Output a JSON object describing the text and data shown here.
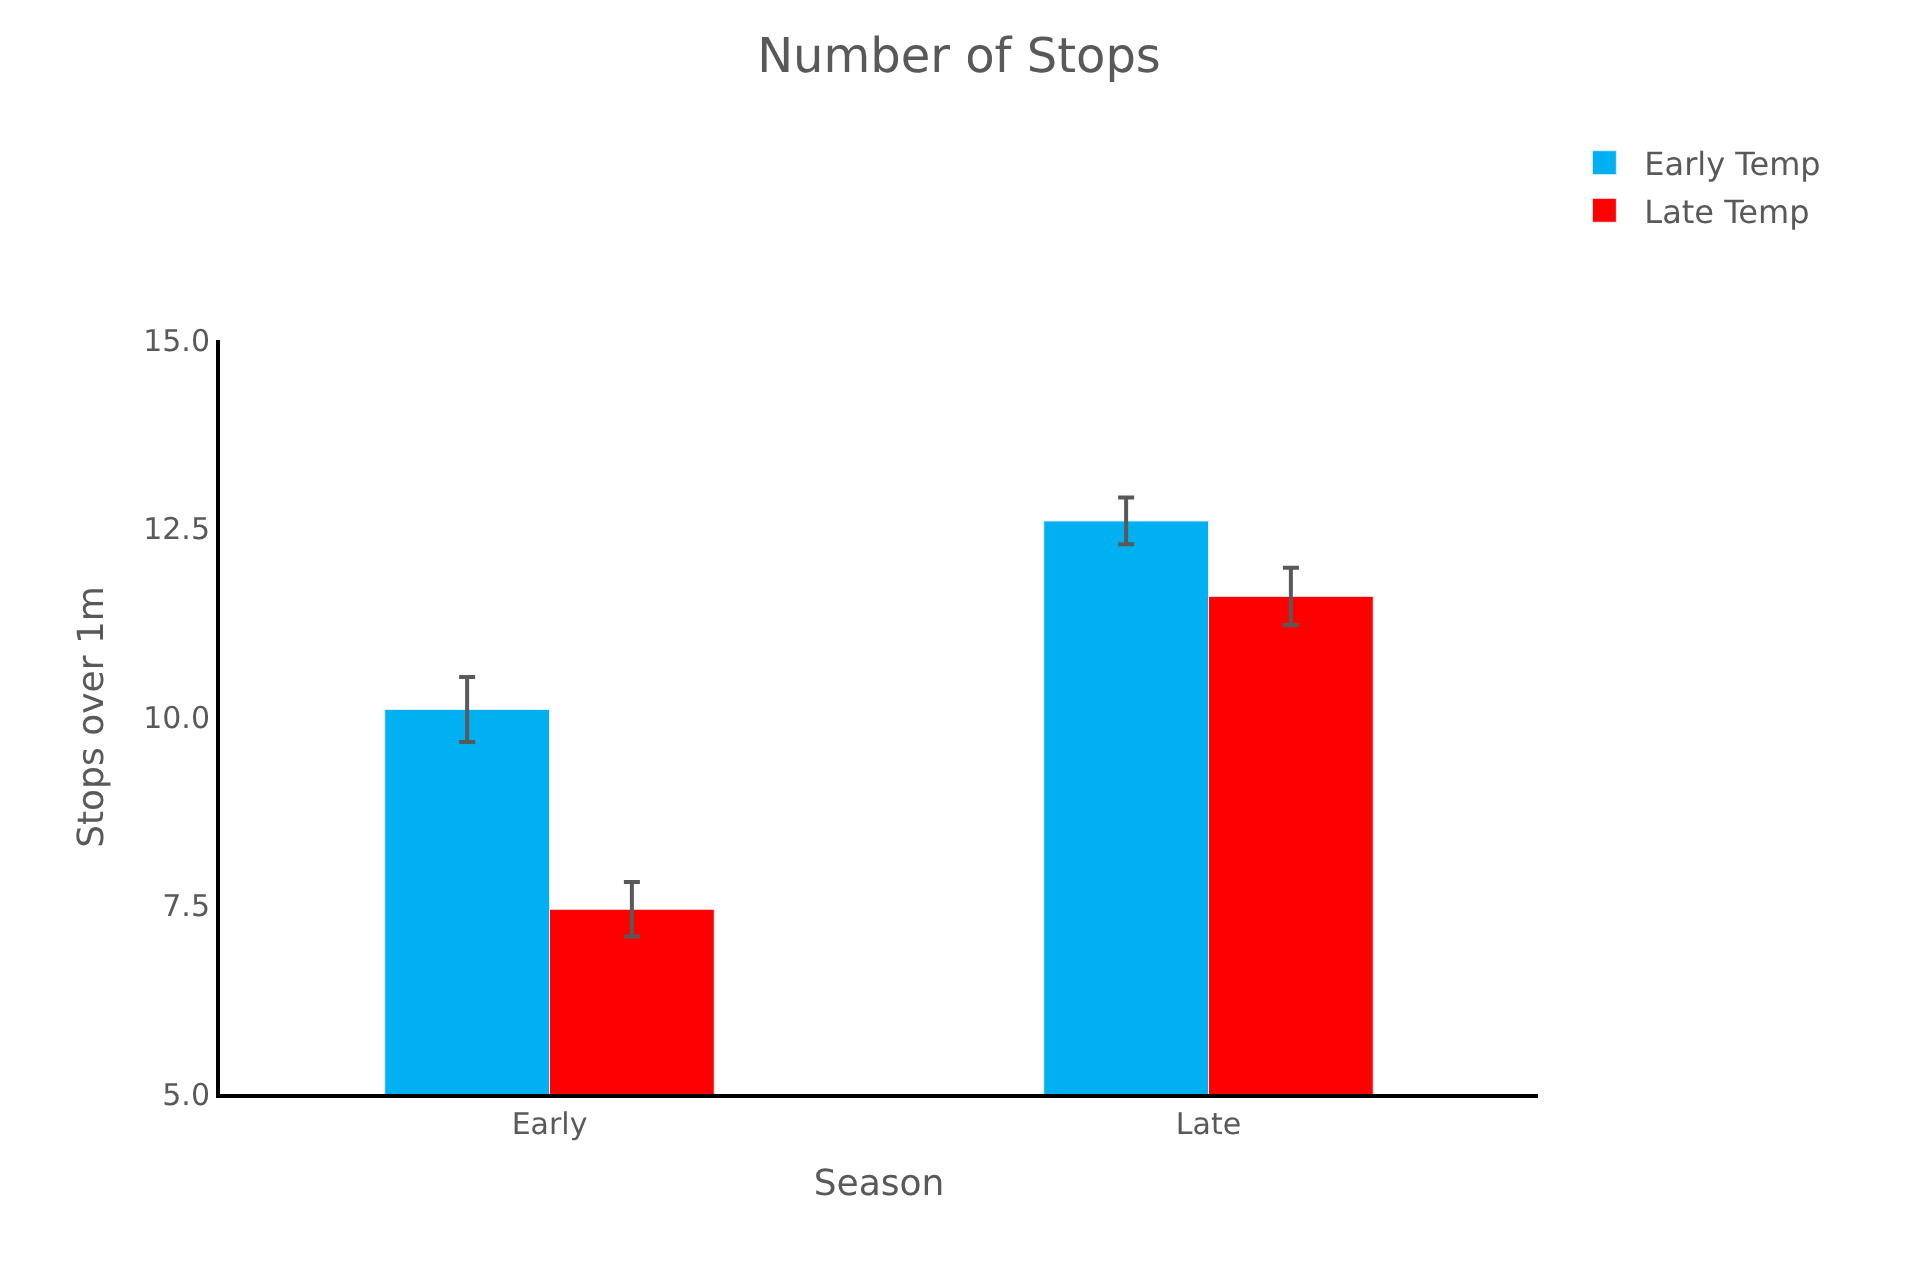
{
  "chart_data": {
    "type": "bar",
    "title": "Number of Stops",
    "xlabel": "Season",
    "ylabel": "Stops over 1m",
    "categories": [
      "Early",
      "Late"
    ],
    "series": [
      {
        "name": "Early Temp",
        "color": "#00b0f0",
        "values": [
          10.1,
          12.6
        ],
        "errors": [
          0.43,
          0.31
        ]
      },
      {
        "name": "Late Temp",
        "color": "#ff0000",
        "values": [
          7.45,
          11.6
        ],
        "errors": [
          0.36,
          0.38
        ]
      }
    ],
    "ylim": [
      5,
      15
    ],
    "yticks": [
      {
        "value": 5,
        "label": "5.0"
      },
      {
        "value": 7.5,
        "label": "7.5"
      },
      {
        "value": 10,
        "label": "10.0"
      },
      {
        "value": 12.5,
        "label": "12.5"
      },
      {
        "value": 15,
        "label": "15.0"
      }
    ],
    "legend": "top right"
  }
}
